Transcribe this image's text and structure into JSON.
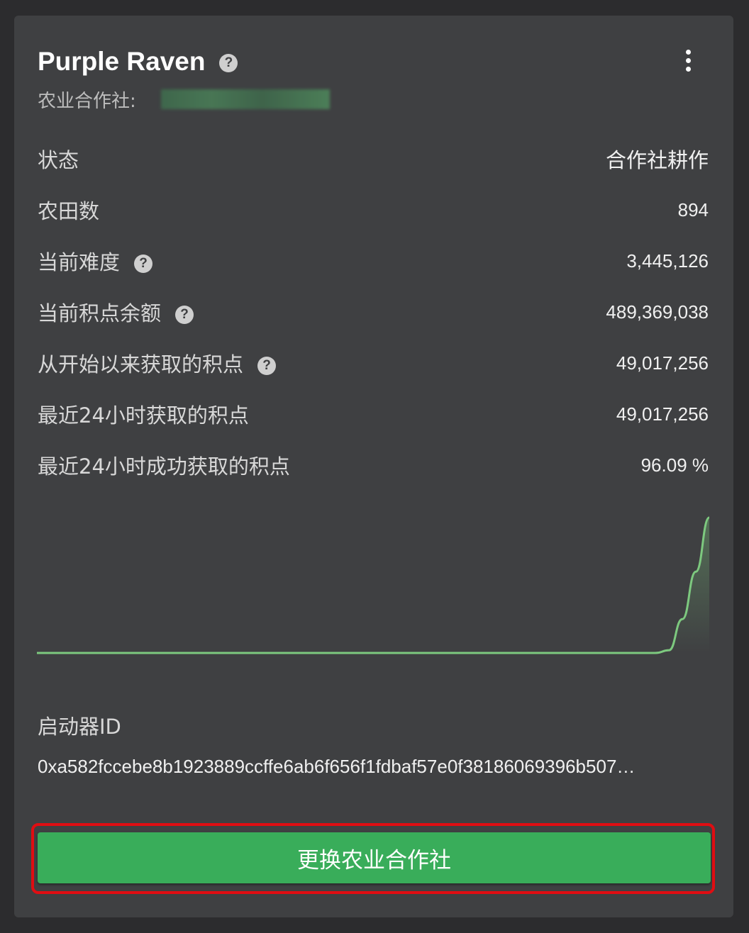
{
  "header": {
    "title": "Purple Raven",
    "pool_label": "农业合作社:",
    "menu_icon": "more-vert-icon",
    "help_icon": "question-circle-icon"
  },
  "rows": [
    {
      "label": "状态",
      "value": "合作社耕作",
      "help": false
    },
    {
      "label": "农田数",
      "value": "894",
      "help": false
    },
    {
      "label": "当前难度",
      "value": "3,445,126",
      "help": true
    },
    {
      "label": "当前积点余额",
      "value": "489,369,038",
      "help": true
    },
    {
      "label": "从开始以来获取的积点",
      "value": "49,017,256",
      "help": true
    },
    {
      "label": "最近24小时获取的积点",
      "value": "49,017,256",
      "help": false
    },
    {
      "label": "最近24小时成功获取的积点",
      "value": "96.09 %",
      "help": false
    }
  ],
  "chart_data": {
    "type": "area",
    "values": [
      0,
      0,
      0,
      0,
      0,
      0,
      0,
      0,
      0,
      0,
      0,
      0,
      0,
      0,
      0,
      0,
      0,
      0,
      0,
      0,
      0,
      0,
      0,
      0,
      0,
      0,
      0,
      0,
      0,
      0,
      0,
      0,
      0,
      0,
      0,
      0,
      0,
      0,
      0,
      0,
      0,
      0,
      0,
      0,
      0,
      0,
      0,
      0.02,
      0.25,
      0.6,
      1
    ],
    "color": "#7dc97f"
  },
  "launcher": {
    "label": "启动器ID",
    "value": "0xa582fccebe8b1923889ccffe6ab6f656f1fdbaf57e0f38186069396b507…"
  },
  "action": {
    "label": "更换农业合作社",
    "color": "#39ad5a",
    "highlight": "#e00d12"
  }
}
